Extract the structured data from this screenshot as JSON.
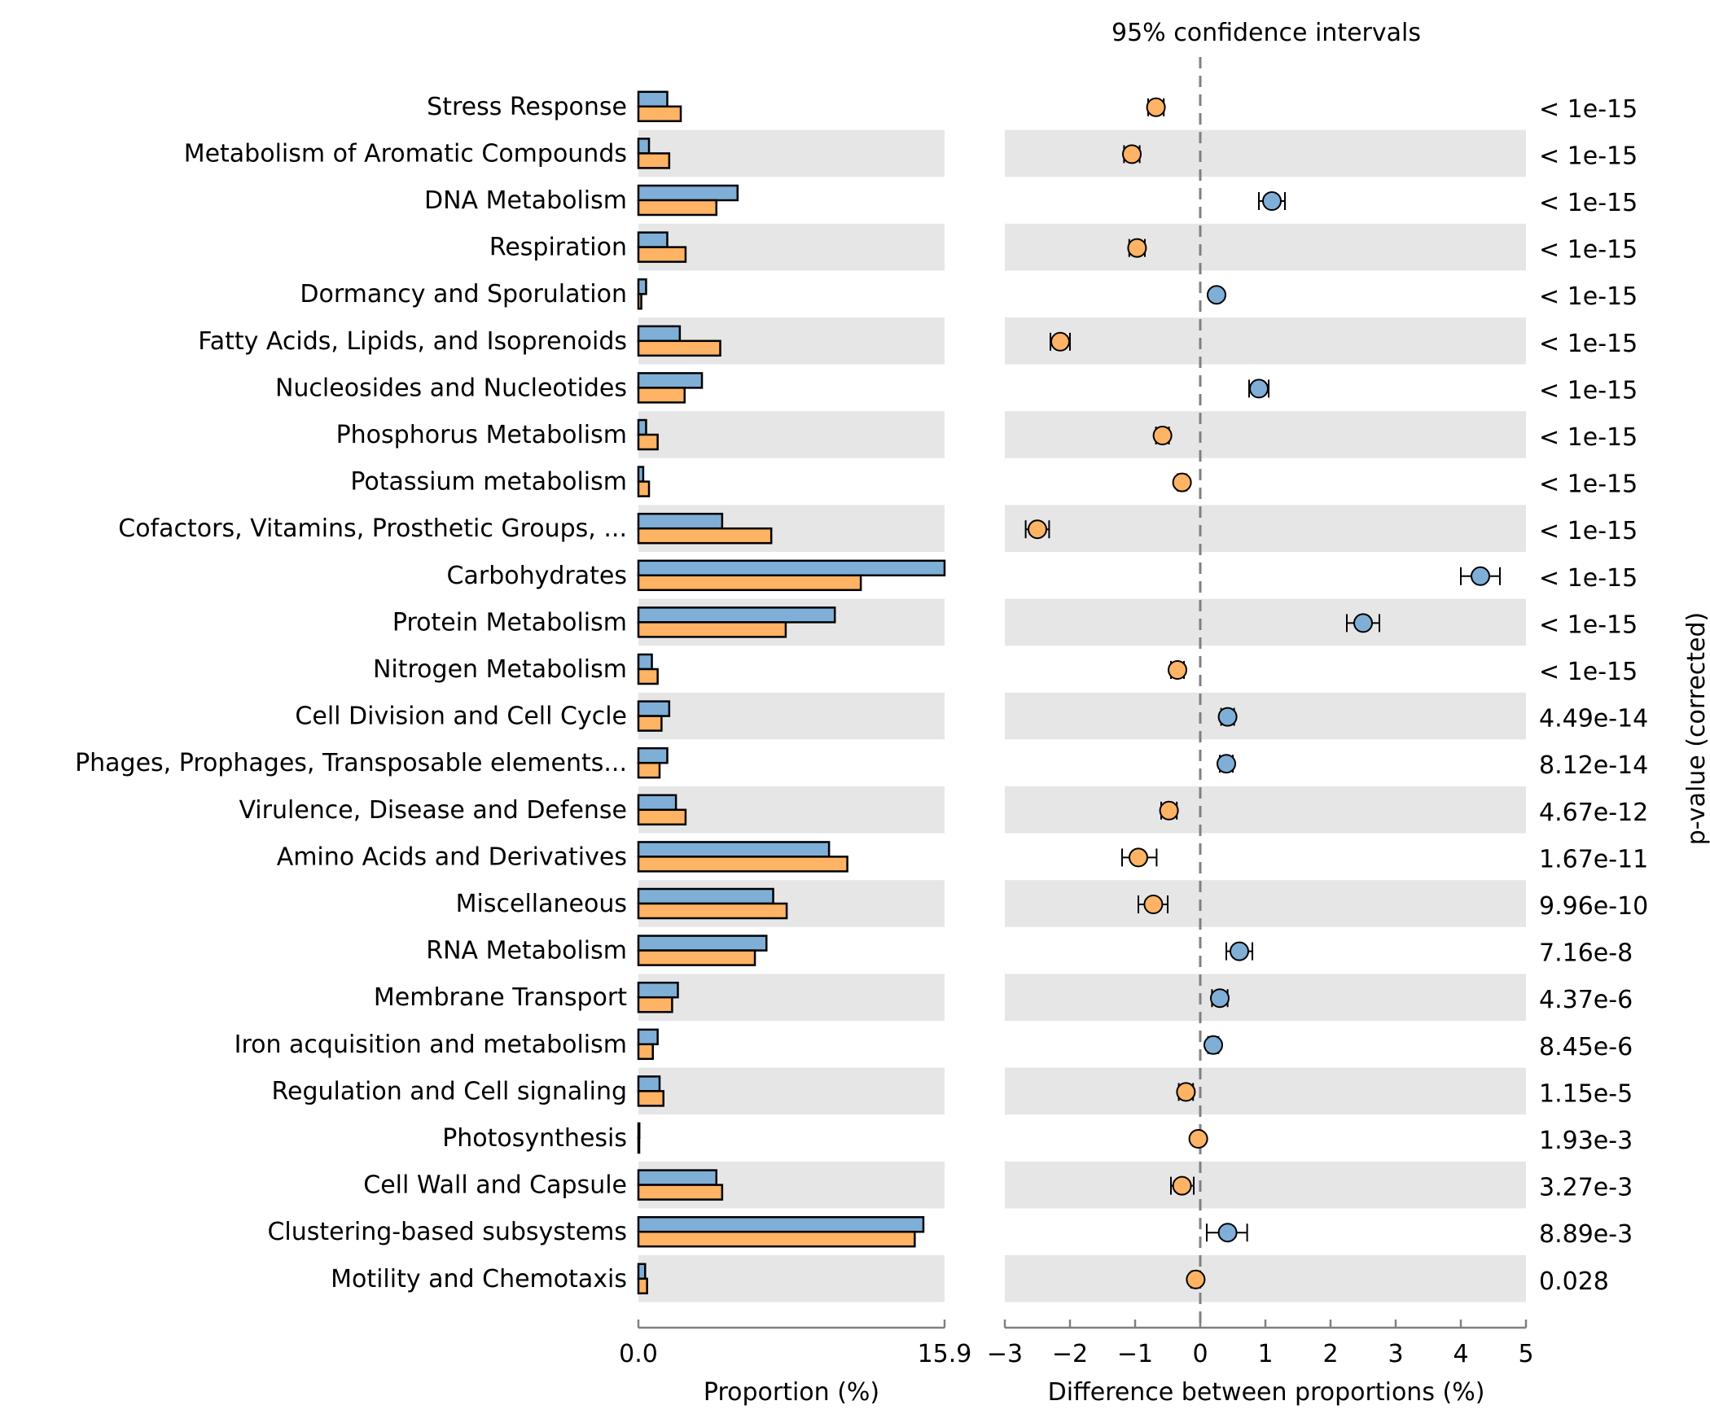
{
  "chart_data": [
    {
      "type": "bar",
      "orientation": "horizontal",
      "xlabel": "Proportion (%)",
      "xlim": [
        0.0,
        15.9
      ],
      "x_tick_labels": [
        "0.0",
        "15.9"
      ],
      "categories": [
        "Stress Response",
        "Metabolism of Aromatic Compounds",
        "DNA Metabolism",
        "Respiration",
        "Dormancy and Sporulation",
        "Fatty Acids, Lipids, and Isoprenoids",
        "Nucleosides and Nucleotides",
        "Phosphorus Metabolism",
        "Potassium metabolism",
        "Cofactors, Vitamins, Prosthetic Groups, ...",
        "Carbohydrates",
        "Protein Metabolism",
        "Nitrogen Metabolism",
        "Cell Division and Cell Cycle",
        "Phages, Prophages, Transposable elements...",
        "Virulence, Disease and Defense",
        "Amino Acids and Derivatives",
        "Miscellaneous",
        "RNA Metabolism",
        "Membrane Transport",
        "Iron acquisition and metabolism",
        "Regulation and Cell signaling",
        "Photosynthesis",
        "Cell Wall and Capsule",
        "Clustering-based subsystems",
        "Motility and Chemotaxis"
      ],
      "series": [
        {
          "color": "#7fafd7",
          "values": [
            1.5,
            0.55,
            5.15,
            1.5,
            0.4,
            2.15,
            3.3,
            0.4,
            0.25,
            4.35,
            15.9,
            10.2,
            0.7,
            1.6,
            1.5,
            1.95,
            9.9,
            7.0,
            6.65,
            2.05,
            1.0,
            1.1,
            0.05,
            4.05,
            14.8,
            0.35
          ]
        },
        {
          "color": "#ffb364",
          "values": [
            2.2,
            1.6,
            4.05,
            2.45,
            0.15,
            4.25,
            2.4,
            1.0,
            0.55,
            6.9,
            11.55,
            7.65,
            1.0,
            1.2,
            1.1,
            2.45,
            10.85,
            7.7,
            6.05,
            1.75,
            0.75,
            1.3,
            0.02,
            4.35,
            14.35,
            0.45
          ]
        }
      ],
      "alternate_row_shading": true,
      "grid": false
    },
    {
      "type": "scatter",
      "title": "95% confidence intervals",
      "xlabel": "Difference between proportions (%)",
      "xlim": [
        -3,
        5
      ],
      "x_ticks": [
        -3,
        -2,
        -1,
        0,
        1,
        2,
        3,
        4,
        5
      ],
      "x_tick_labels": [
        "−3",
        "−2",
        "−1",
        "0",
        "1",
        "2",
        "3",
        "4",
        "5"
      ],
      "reference_line": 0,
      "points": [
        {
          "diff": -0.68,
          "ci": [
            -0.8,
            -0.56
          ],
          "color": "#ffb364"
        },
        {
          "diff": -1.05,
          "ci": [
            -1.17,
            -0.93
          ],
          "color": "#ffb364"
        },
        {
          "diff": 1.1,
          "ci": [
            0.9,
            1.3
          ],
          "color": "#7fafd7"
        },
        {
          "diff": -0.97,
          "ci": [
            -1.09,
            -0.85
          ],
          "color": "#ffb364"
        },
        {
          "diff": 0.25,
          "ci": [
            0.2,
            0.3
          ],
          "color": "#7fafd7"
        },
        {
          "diff": -2.15,
          "ci": [
            -2.3,
            -2.0
          ],
          "color": "#ffb364"
        },
        {
          "diff": 0.9,
          "ci": [
            0.75,
            1.05
          ],
          "color": "#7fafd7"
        },
        {
          "diff": -0.58,
          "ci": [
            -0.68,
            -0.48
          ],
          "color": "#ffb364"
        },
        {
          "diff": -0.28,
          "ci": [
            -0.35,
            -0.21
          ],
          "color": "#ffb364"
        },
        {
          "diff": -2.5,
          "ci": [
            -2.68,
            -2.32
          ],
          "color": "#ffb364"
        },
        {
          "diff": 4.3,
          "ci": [
            4.0,
            4.6
          ],
          "color": "#7fafd7"
        },
        {
          "diff": 2.5,
          "ci": [
            2.25,
            2.75
          ],
          "color": "#7fafd7"
        },
        {
          "diff": -0.35,
          "ci": [
            -0.45,
            -0.25
          ],
          "color": "#ffb364"
        },
        {
          "diff": 0.42,
          "ci": [
            0.32,
            0.52
          ],
          "color": "#7fafd7"
        },
        {
          "diff": 0.4,
          "ci": [
            0.3,
            0.5
          ],
          "color": "#7fafd7"
        },
        {
          "diff": -0.48,
          "ci": [
            -0.6,
            -0.36
          ],
          "color": "#ffb364"
        },
        {
          "diff": -0.95,
          "ci": [
            -1.2,
            -0.67
          ],
          "color": "#ffb364"
        },
        {
          "diff": -0.72,
          "ci": [
            -0.95,
            -0.5
          ],
          "color": "#ffb364"
        },
        {
          "diff": 0.6,
          "ci": [
            0.4,
            0.8
          ],
          "color": "#7fafd7"
        },
        {
          "diff": 0.3,
          "ci": [
            0.18,
            0.42
          ],
          "color": "#7fafd7"
        },
        {
          "diff": 0.2,
          "ci": [
            0.12,
            0.28
          ],
          "color": "#7fafd7"
        },
        {
          "diff": -0.22,
          "ci": [
            -0.33,
            -0.11
          ],
          "color": "#ffb364"
        },
        {
          "diff": -0.03,
          "ci": [
            -0.06,
            0.0
          ],
          "color": "#ffb364"
        },
        {
          "diff": -0.28,
          "ci": [
            -0.45,
            -0.1
          ],
          "color": "#ffb364"
        },
        {
          "diff": 0.42,
          "ci": [
            0.1,
            0.72
          ],
          "color": "#7fafd7"
        },
        {
          "diff": -0.07,
          "ci": [
            -0.14,
            0.0
          ],
          "color": "#ffb364"
        }
      ],
      "alternate_row_shading": true
    }
  ],
  "pvalues": {
    "label": "p-value (corrected)",
    "values": [
      "< 1e-15",
      "< 1e-15",
      "< 1e-15",
      "< 1e-15",
      "< 1e-15",
      "< 1e-15",
      "< 1e-15",
      "< 1e-15",
      "< 1e-15",
      "< 1e-15",
      "< 1e-15",
      "< 1e-15",
      "< 1e-15",
      "4.49e-14",
      "8.12e-14",
      "4.67e-12",
      "1.67e-11",
      "9.96e-10",
      "7.16e-8",
      "4.37e-6",
      "8.45e-6",
      "1.15e-5",
      "1.93e-3",
      "3.27e-3",
      "8.89e-3",
      "0.028"
    ]
  },
  "colors": {
    "shade": "#e6e6e6",
    "axis": "#808080",
    "edge": "#000000"
  }
}
